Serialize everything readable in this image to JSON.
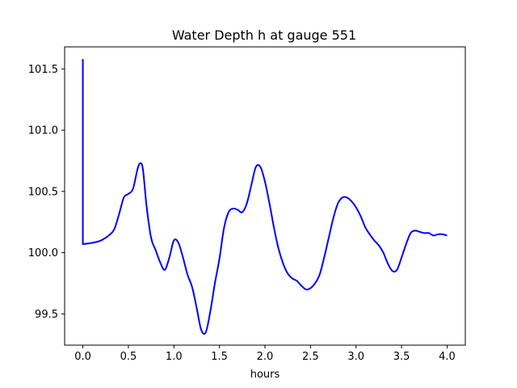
{
  "chart_data": {
    "type": "line",
    "title": "Water Depth h at gauge 551",
    "xlabel": "hours",
    "ylabel": "",
    "xlim": [
      -0.2,
      4.2
    ],
    "ylim": [
      99.245,
      101.68
    ],
    "xticks": [
      0.0,
      0.5,
      1.0,
      1.5,
      2.0,
      2.5,
      3.0,
      3.5,
      4.0
    ],
    "xtick_labels": [
      "0.0",
      "0.5",
      "1.0",
      "1.5",
      "2.0",
      "2.5",
      "3.0",
      "3.5",
      "4.0"
    ],
    "yticks": [
      99.5,
      100.0,
      100.5,
      101.0,
      101.5
    ],
    "ytick_labels": [
      "99.5",
      "100.0",
      "100.5",
      "101.0",
      "101.5"
    ],
    "grid": false,
    "series": [
      {
        "color": "#0000ff",
        "x": [
          0.0,
          0.0,
          0.0,
          0.1,
          0.2,
          0.3,
          0.35,
          0.4,
          0.45,
          0.5,
          0.55,
          0.6,
          0.63,
          0.66,
          0.7,
          0.75,
          0.8,
          0.85,
          0.9,
          0.95,
          1.0,
          1.05,
          1.1,
          1.15,
          1.2,
          1.25,
          1.3,
          1.35,
          1.4,
          1.45,
          1.5,
          1.55,
          1.6,
          1.65,
          1.7,
          1.75,
          1.8,
          1.85,
          1.9,
          1.95,
          2.0,
          2.05,
          2.1,
          2.15,
          2.2,
          2.25,
          2.3,
          2.35,
          2.4,
          2.45,
          2.5,
          2.55,
          2.6,
          2.65,
          2.7,
          2.75,
          2.8,
          2.85,
          2.9,
          2.95,
          3.0,
          3.05,
          3.1,
          3.15,
          3.2,
          3.25,
          3.3,
          3.35,
          3.4,
          3.45,
          3.5,
          3.55,
          3.6,
          3.65,
          3.7,
          3.75,
          3.8,
          3.85,
          3.9,
          3.95,
          4.0
        ],
        "y": [
          101.58,
          100.2,
          100.07,
          100.08,
          100.1,
          100.15,
          100.2,
          100.32,
          100.45,
          100.48,
          100.52,
          100.68,
          100.73,
          100.68,
          100.38,
          100.12,
          100.02,
          99.92,
          99.86,
          99.96,
          100.1,
          100.08,
          99.96,
          99.82,
          99.72,
          99.55,
          99.37,
          99.35,
          99.52,
          99.75,
          99.95,
          100.2,
          100.33,
          100.36,
          100.35,
          100.33,
          100.4,
          100.55,
          100.7,
          100.7,
          100.58,
          100.4,
          100.2,
          100.03,
          99.91,
          99.83,
          99.79,
          99.77,
          99.73,
          99.7,
          99.71,
          99.75,
          99.82,
          99.96,
          100.12,
          100.28,
          100.4,
          100.45,
          100.45,
          100.42,
          100.37,
          100.3,
          100.21,
          100.15,
          100.1,
          100.06,
          100.0,
          99.91,
          99.85,
          99.86,
          99.96,
          100.07,
          100.16,
          100.18,
          100.17,
          100.16,
          100.16,
          100.14,
          100.15,
          100.15,
          100.14
        ]
      }
    ]
  }
}
